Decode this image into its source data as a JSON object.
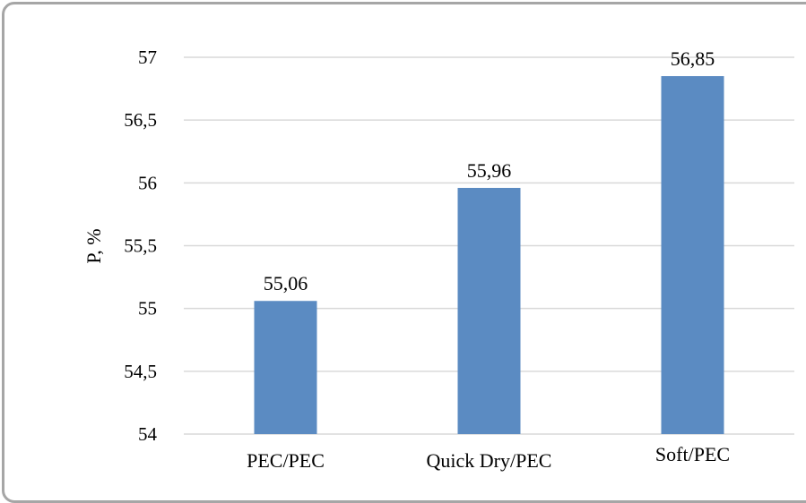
{
  "chart_data": {
    "type": "bar",
    "categories": [
      "PEC/PEC",
      "Quick Dry/PEC",
      "Soft/PEC"
    ],
    "values": [
      55.06,
      55.96,
      56.85
    ],
    "value_labels": [
      "55,06",
      "55,96",
      "56,85"
    ],
    "ylabel": "P, %",
    "xlabel": "",
    "ylim": [
      54,
      57
    ],
    "yticks": [
      54,
      54.5,
      55,
      55.5,
      56,
      56.5,
      57
    ],
    "ytick_labels": [
      "54",
      "54,5",
      "55",
      "55,5",
      "56",
      "56,5",
      "57"
    ],
    "grid": true,
    "bar_color": "#5b8bc2",
    "grid_color": "#d9d9d9"
  }
}
